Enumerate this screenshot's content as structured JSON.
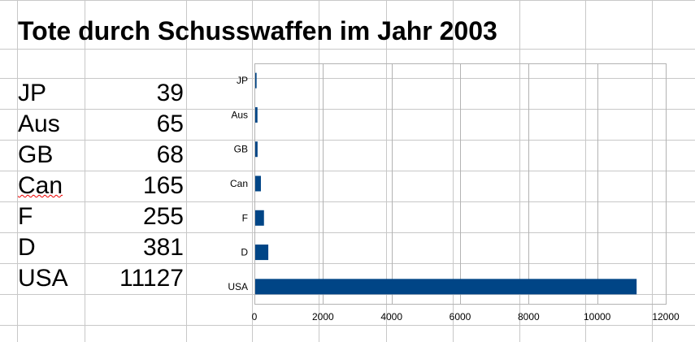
{
  "title": "Tote durch Schusswaffen im Jahr 2003",
  "table": [
    {
      "country": "JP",
      "value": "39"
    },
    {
      "country": "Aus",
      "value": "65"
    },
    {
      "country": "GB",
      "value": "68"
    },
    {
      "country": "Can",
      "value": "165"
    },
    {
      "country": "F",
      "value": "255"
    },
    {
      "country": "D",
      "value": "381"
    },
    {
      "country": "USA",
      "value": "11127"
    }
  ],
  "chart_data": {
    "type": "bar",
    "orientation": "horizontal",
    "categories": [
      "JP",
      "Aus",
      "GB",
      "Can",
      "F",
      "D",
      "USA"
    ],
    "values": [
      39,
      65,
      68,
      165,
      255,
      381,
      11127
    ],
    "xlim": [
      0,
      12000
    ],
    "xticks": [
      0,
      2000,
      4000,
      6000,
      8000,
      10000,
      12000
    ],
    "grid": true,
    "bar_color": "#004586"
  }
}
